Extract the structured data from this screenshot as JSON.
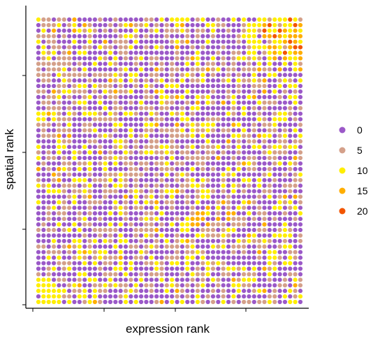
{
  "chart_data": {
    "type": "scatter",
    "xlabel": "expression rank",
    "ylabel": "spatial rank",
    "grid": "square lattice of points, 52 columns x 52 rows",
    "xticks": "unlabeled",
    "yticks": "unlabeled",
    "grid_lines": false,
    "color_variable_range": [
      0,
      20
    ],
    "legend": {
      "position": "right",
      "entries": [
        {
          "label": "0",
          "color": "#9b59c8"
        },
        {
          "label": "5",
          "color": "#d4a08a"
        },
        {
          "label": "10",
          "color": "#ffee00"
        },
        {
          "label": "15",
          "color": "#ffae00"
        },
        {
          "label": "20",
          "color": "#f25500"
        }
      ]
    },
    "hotspots": [
      {
        "region": "top-right",
        "description": "cluster of high values (15-20)"
      },
      {
        "region": "bottom-left",
        "description": "cluster of elevated values (10)"
      }
    ]
  }
}
